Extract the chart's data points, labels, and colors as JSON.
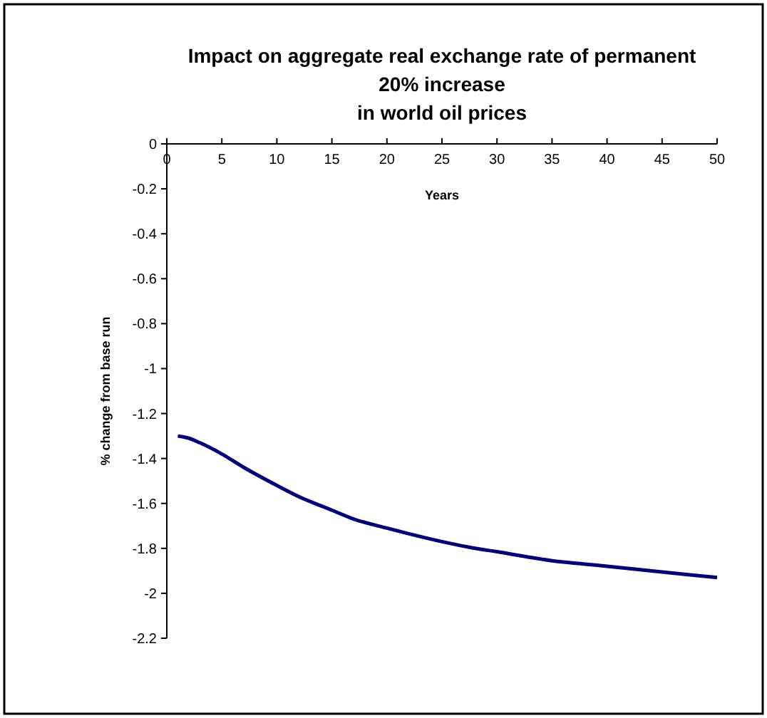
{
  "chart_data": {
    "type": "line",
    "title": "Impact on aggregate real exchange rate of permanent\n20% increase\nin world oil prices",
    "xlabel": "Years",
    "ylabel": "% change from base run",
    "x": [
      1,
      2,
      3,
      5,
      7,
      10,
      12,
      15,
      17,
      20,
      22,
      25,
      28,
      30,
      33,
      35,
      38,
      40,
      43,
      45,
      48,
      50
    ],
    "series": [
      {
        "color": "#000080",
        "values": [
          -1.3,
          -1.31,
          -1.33,
          -1.38,
          -1.44,
          -1.52,
          -1.57,
          -1.63,
          -1.67,
          -1.71,
          -1.735,
          -1.77,
          -1.8,
          -1.815,
          -1.84,
          -1.855,
          -1.87,
          -1.88,
          -1.895,
          -1.905,
          -1.92,
          -1.93
        ]
      }
    ],
    "xlim": [
      0,
      50
    ],
    "xticks": [
      0,
      5,
      10,
      15,
      20,
      25,
      30,
      35,
      40,
      45,
      50
    ],
    "ylim": [
      -2.2,
      0
    ],
    "yticks": [
      0,
      -0.2,
      -0.4,
      -0.6,
      -0.8,
      -1,
      -1.2,
      -1.4,
      -1.6,
      -1.8,
      -2,
      -2.2
    ],
    "grid": false,
    "marker": "none",
    "line_style": "solid"
  }
}
